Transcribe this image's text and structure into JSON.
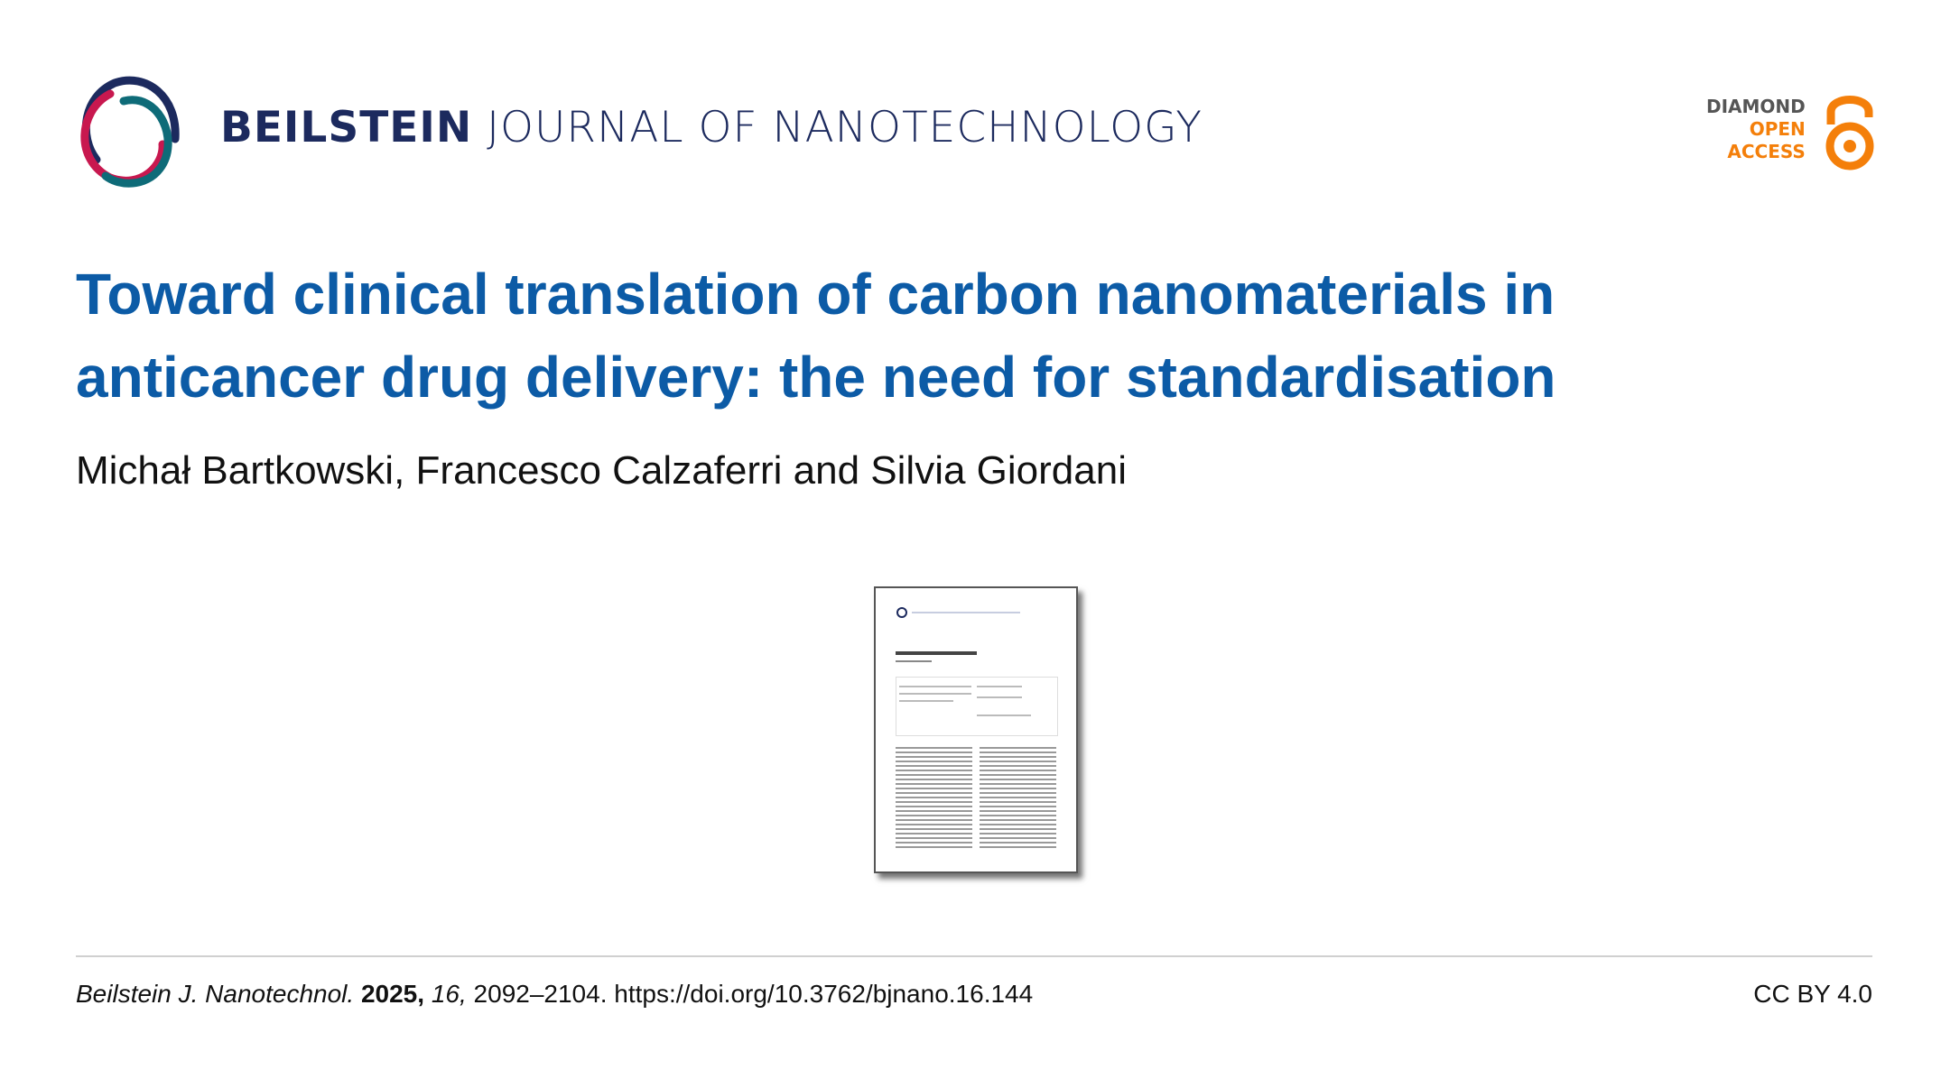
{
  "header": {
    "journal_bold": "BEILSTEIN",
    "journal_rest": " JOURNAL OF NANOTECHNOLOGY",
    "oa_line1": "DIAMOND",
    "oa_line2": "OPEN",
    "oa_line3": "ACCESS",
    "colors": {
      "navy": "#1c2a5e",
      "crimson": "#c8184f",
      "teal": "#0e6b78",
      "orange": "#f47f0a"
    }
  },
  "article": {
    "title": "Toward clinical translation of carbon nanomaterials in anticancer drug delivery: the need for standardisation",
    "authors": "Michał Bartkowski, Francesco Calzaferri and Silvia Giordani"
  },
  "footer": {
    "journal_abbrev": "Beilstein J. Nanotechnol.",
    "year": "2025,",
    "volume": "16,",
    "pages": "2092–2104.",
    "doi": "https://doi.org/10.3762/bjnano.16.144",
    "license": "CC BY 4.0"
  }
}
